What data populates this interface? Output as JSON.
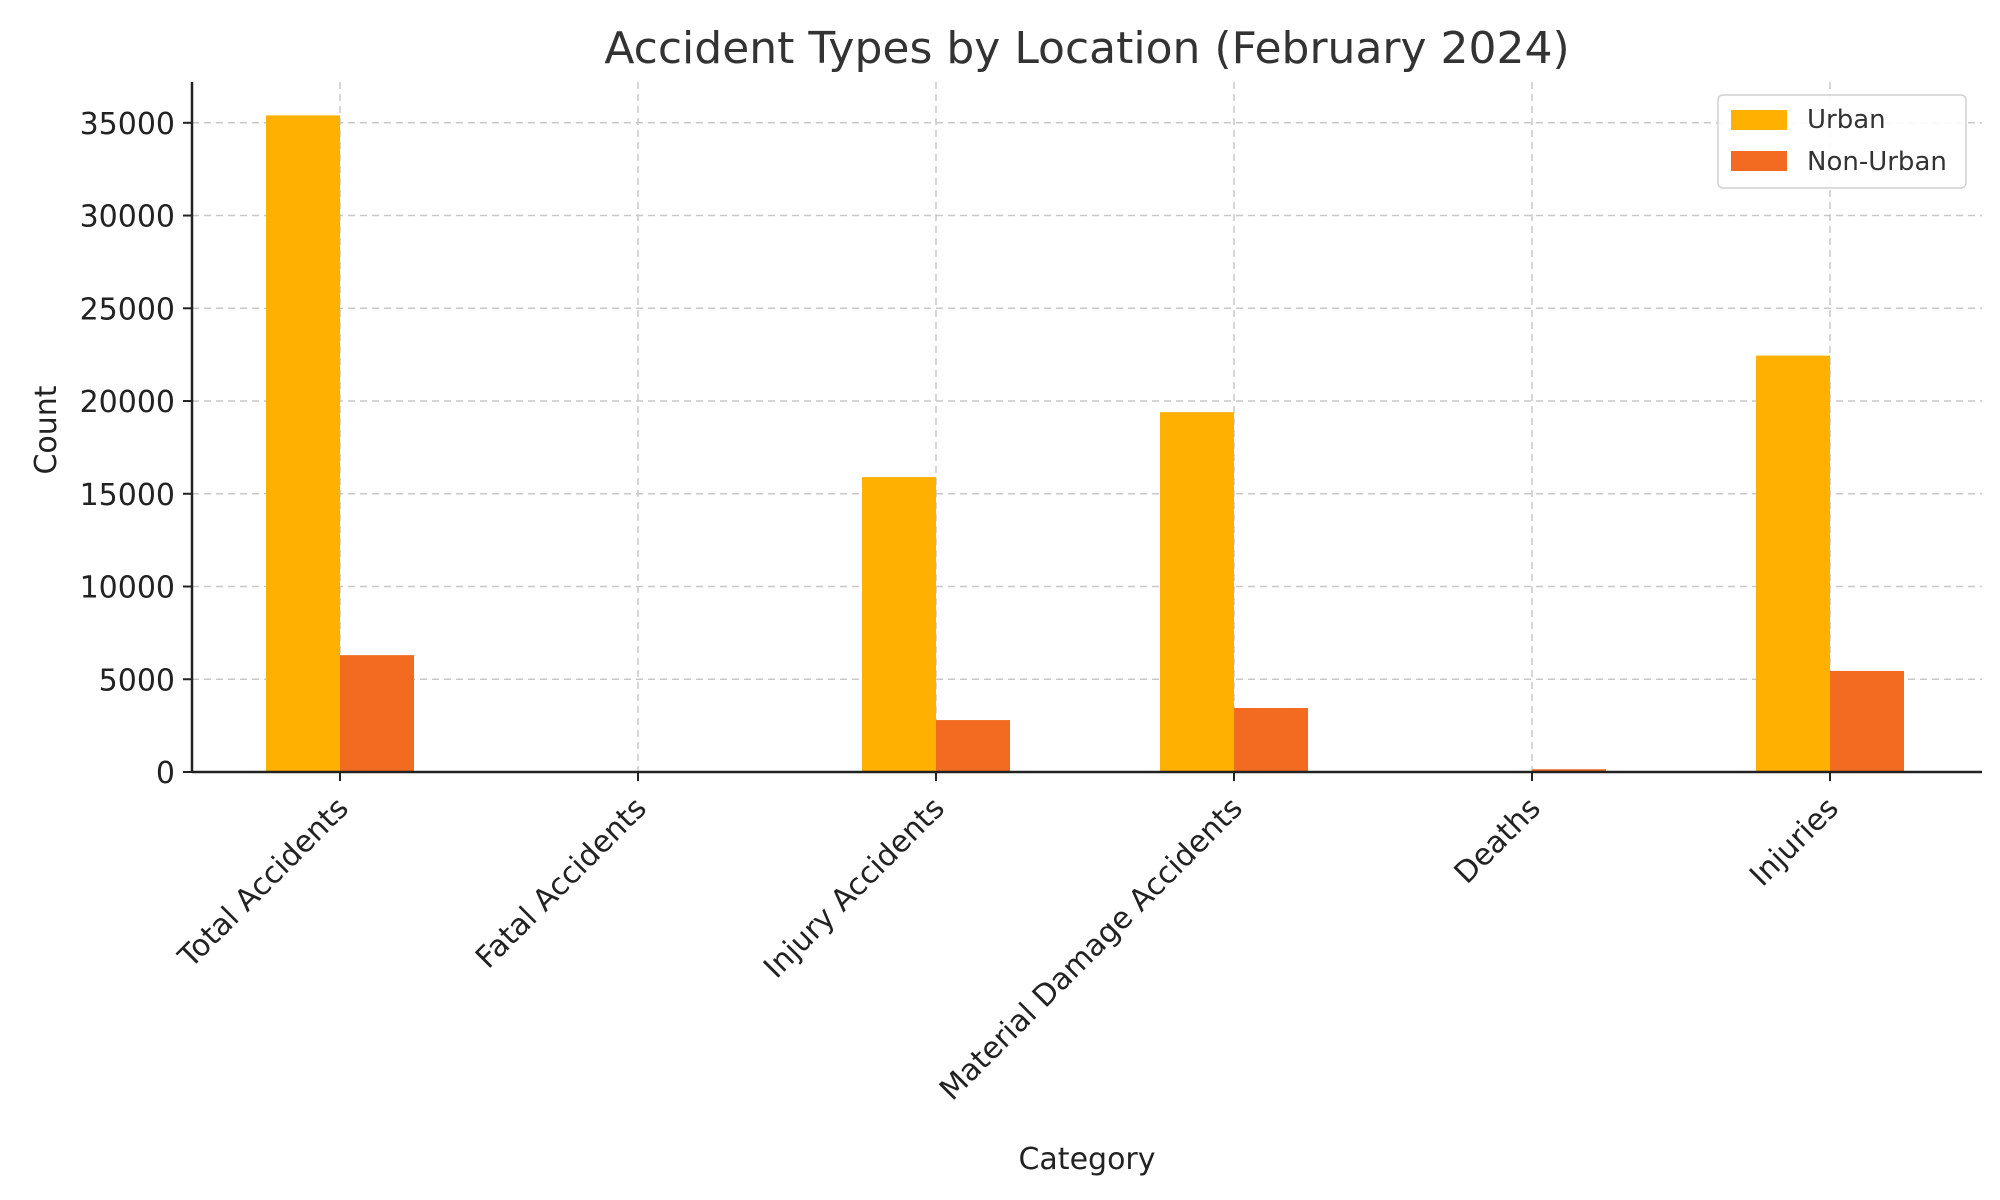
{
  "chart_data": {
    "type": "bar",
    "title": "Accident Types by Location (February 2024)",
    "xlabel": "Category",
    "ylabel": "Count",
    "categories": [
      "Total Accidents",
      "Fatal Accidents",
      "Injury Accidents",
      "Material Damage Accidents",
      "Deaths",
      "Injuries"
    ],
    "series": [
      {
        "name": "Urban",
        "color": "#FFB000",
        "values": [
          35400,
          10,
          15900,
          19400,
          10,
          22450
        ]
      },
      {
        "name": "Non-Urban",
        "color": "#F26B21",
        "values": [
          6300,
          50,
          2800,
          3450,
          150,
          5450
        ]
      }
    ],
    "yticks": [
      "0",
      "5000",
      "10000",
      "15000",
      "20000",
      "25000",
      "30000",
      "35000"
    ],
    "ylim": [
      0,
      37200
    ],
    "grid": true,
    "legend_position": "top-right"
  }
}
